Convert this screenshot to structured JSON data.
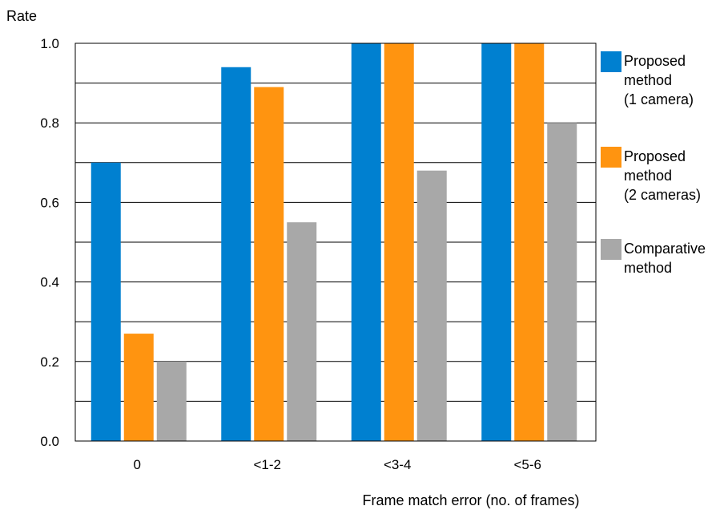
{
  "chart_data": {
    "type": "bar",
    "ylabel": "Rate",
    "xlabel": "Frame match error (no. of frames)",
    "categories": [
      "0",
      "<1-2",
      "<3-4",
      "<5-6"
    ],
    "y_ticks": [
      "0.0",
      "0.2",
      "0.4",
      "0.6",
      "0.8",
      "1.0"
    ],
    "ylim": [
      0,
      1.0
    ],
    "grid": true,
    "legend_position": "right",
    "series": [
      {
        "name": "Proposed method (1 camera)",
        "legend_lines": [
          "Proposed",
          "method",
          "(1 camera)"
        ],
        "color": "#0080D0",
        "values": [
          0.7,
          0.94,
          1.0,
          1.0
        ]
      },
      {
        "name": "Proposed method (2 cameras)",
        "legend_lines": [
          "Proposed",
          "method",
          "(2 cameras)"
        ],
        "color": "#FF9410",
        "values": [
          0.27,
          0.89,
          1.0,
          1.0
        ]
      },
      {
        "name": "Comparative method",
        "legend_lines": [
          "Comparative",
          "method"
        ],
        "color": "#A8A8A8",
        "values": [
          0.2,
          0.55,
          0.68,
          0.8
        ]
      }
    ]
  }
}
